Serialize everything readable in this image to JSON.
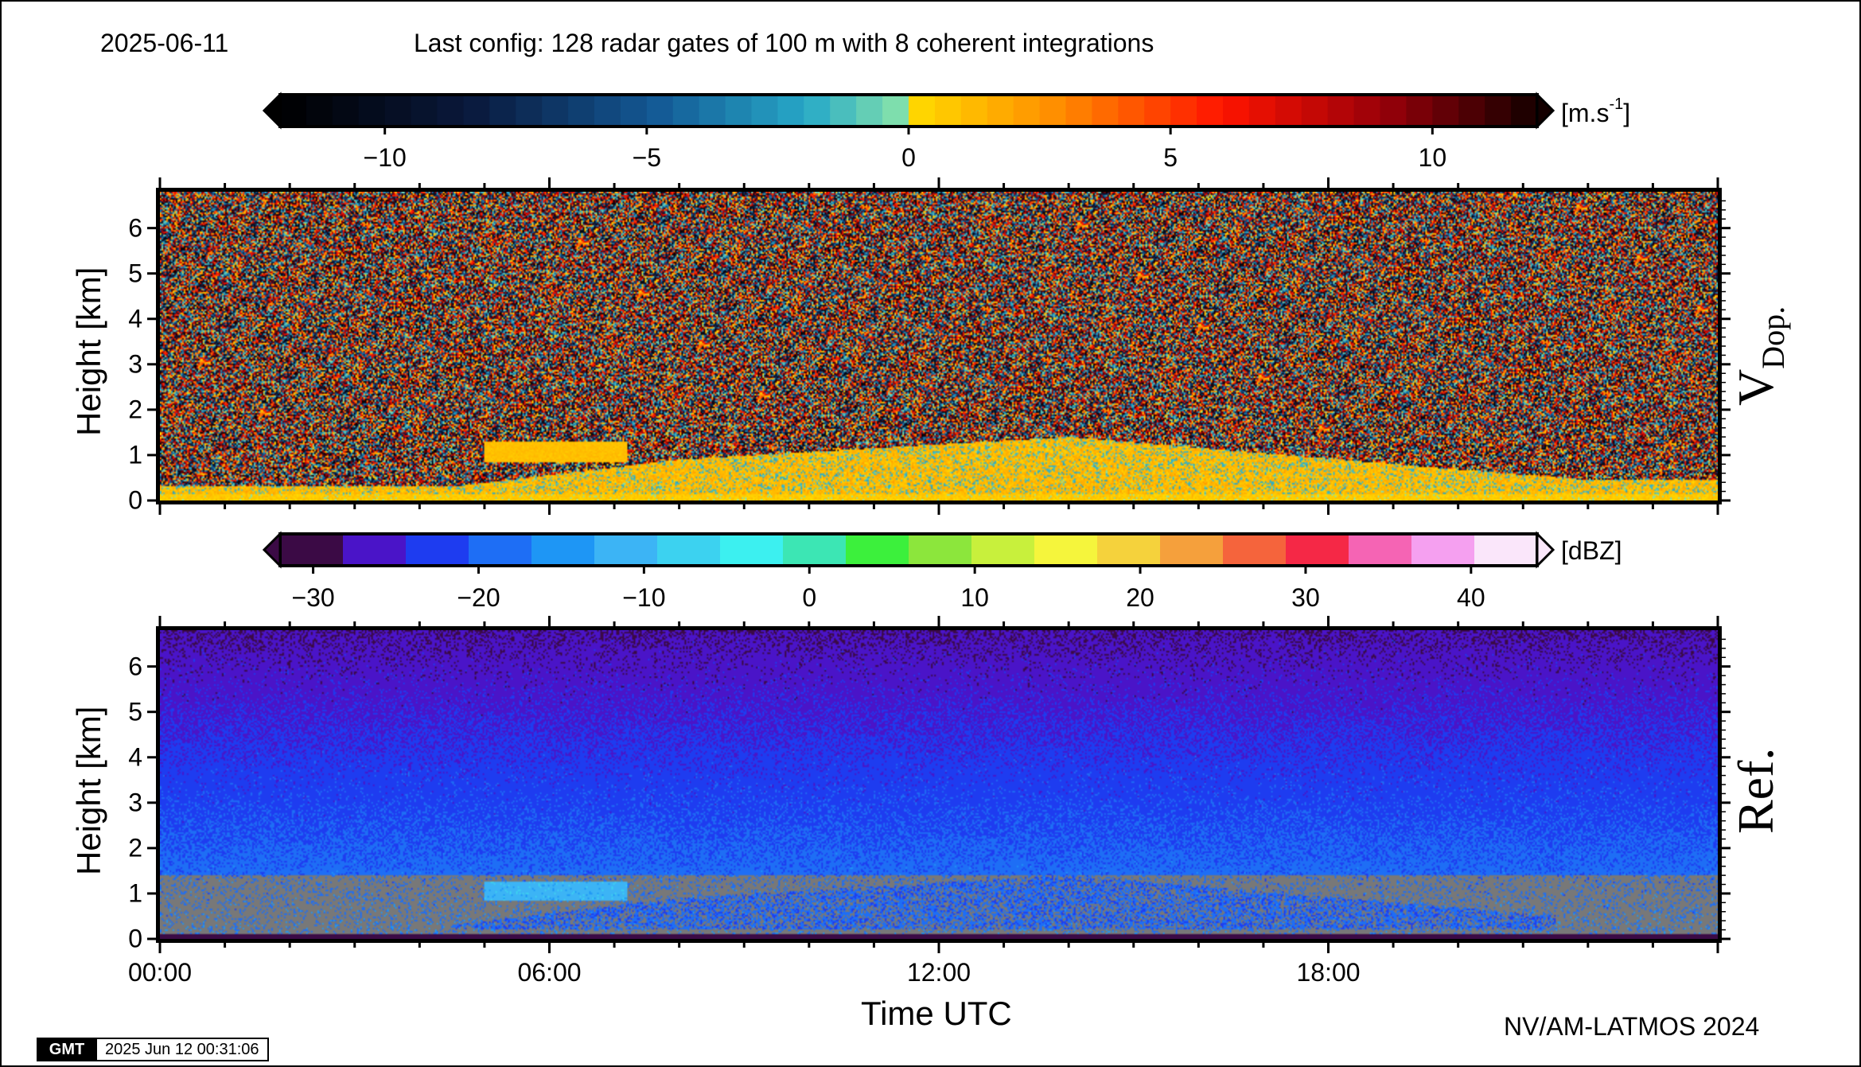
{
  "header": {
    "date": "2025-06-11",
    "config": "Last config: 128 radar gates of 100 m with 8 coherent integrations"
  },
  "colorbars": {
    "velocity": {
      "unit_base": "[m.s",
      "unit_sup": "-1",
      "unit_close": "]",
      "range": [
        -12,
        12
      ],
      "tick_labels": [
        "−10",
        "−5",
        "0",
        "5",
        "10"
      ],
      "tick_values": [
        -10,
        -5,
        0,
        5,
        10
      ]
    },
    "reflectivity": {
      "unit": "[dBZ]",
      "range": [
        -32,
        44
      ],
      "tick_labels": [
        "−30",
        "−20",
        "−10",
        "0",
        "10",
        "20",
        "30",
        "40"
      ],
      "tick_values": [
        -30,
        -20,
        -10,
        0,
        10,
        20,
        30,
        40
      ],
      "colors": [
        "#3b0a45",
        "#4a14c8",
        "#1e3cf0",
        "#1e6ef5",
        "#1e96f5",
        "#3cb4f5",
        "#3cd2f0",
        "#3cf0f0",
        "#3ce6b4",
        "#3cf03c",
        "#8ce63c",
        "#c8f03c",
        "#f5f53c",
        "#f5d23c",
        "#f5a03c",
        "#f5643c",
        "#f52846",
        "#f564b4",
        "#f5a0f0",
        "#fae6fa"
      ]
    }
  },
  "chart_data": [
    {
      "type": "heatmap",
      "panel": "V Dop.",
      "title": "",
      "ylabel": "Height [km]",
      "xlabel": "Time UTC",
      "ylim": [
        0,
        6.8
      ],
      "xlim_hours": [
        0,
        24
      ],
      "yticks": [
        "0",
        "1",
        "2",
        "3",
        "4",
        "5",
        "6"
      ],
      "xticks": [
        "00:00",
        "06:00",
        "12:00",
        "18:00"
      ],
      "value_unit": "m.s-1",
      "description_layers": [
        {
          "layer": "noise",
          "height_km": [
            0.5,
            6.8
          ],
          "value_range": [
            -12,
            12
          ]
        },
        {
          "layer": "boundary-layer echo",
          "time_h": [
            4.5,
            23.5
          ],
          "top_km": 1.4,
          "value_range": [
            0,
            3
          ]
        }
      ]
    },
    {
      "type": "heatmap",
      "panel": "Ref.",
      "title": "",
      "ylabel": "Height [km]",
      "xlabel": "Time UTC",
      "ylim": [
        0,
        6.8
      ],
      "xlim_hours": [
        0,
        24
      ],
      "yticks": [
        "0",
        "1",
        "2",
        "3",
        "4",
        "5",
        "6"
      ],
      "xticks": [
        "00:00",
        "06:00",
        "12:00",
        "18:00"
      ],
      "value_unit": "dBZ",
      "description_layers": [
        {
          "layer": "noise",
          "height_km": [
            1.5,
            6.8
          ],
          "value_range": [
            -26,
            -16
          ]
        },
        {
          "layer": "clutter",
          "height_km": [
            0,
            1.4
          ],
          "color": "#787878"
        },
        {
          "layer": "cloud echo",
          "time_h": [
            5.0,
            7.2
          ],
          "height_km": [
            0.85,
            1.25
          ],
          "value_range": [
            -12,
            -5
          ]
        }
      ]
    }
  ],
  "panels": {
    "velocity": {
      "ylabel": "Height [km]",
      "tag_main": "V",
      "tag_sub": "Dop."
    },
    "reflectivity": {
      "ylabel": "Height [km]",
      "tag_main": "Ref."
    }
  },
  "xaxis": {
    "label": "Time UTC"
  },
  "footer": {
    "credit": "NV/AM-LATMOS 2024",
    "gmt_logo": "GMT",
    "gmt_timestamp": "2025 Jun 12 00:31:06"
  },
  "colors": {
    "clutter": "#787878",
    "background": "#ffffff"
  }
}
